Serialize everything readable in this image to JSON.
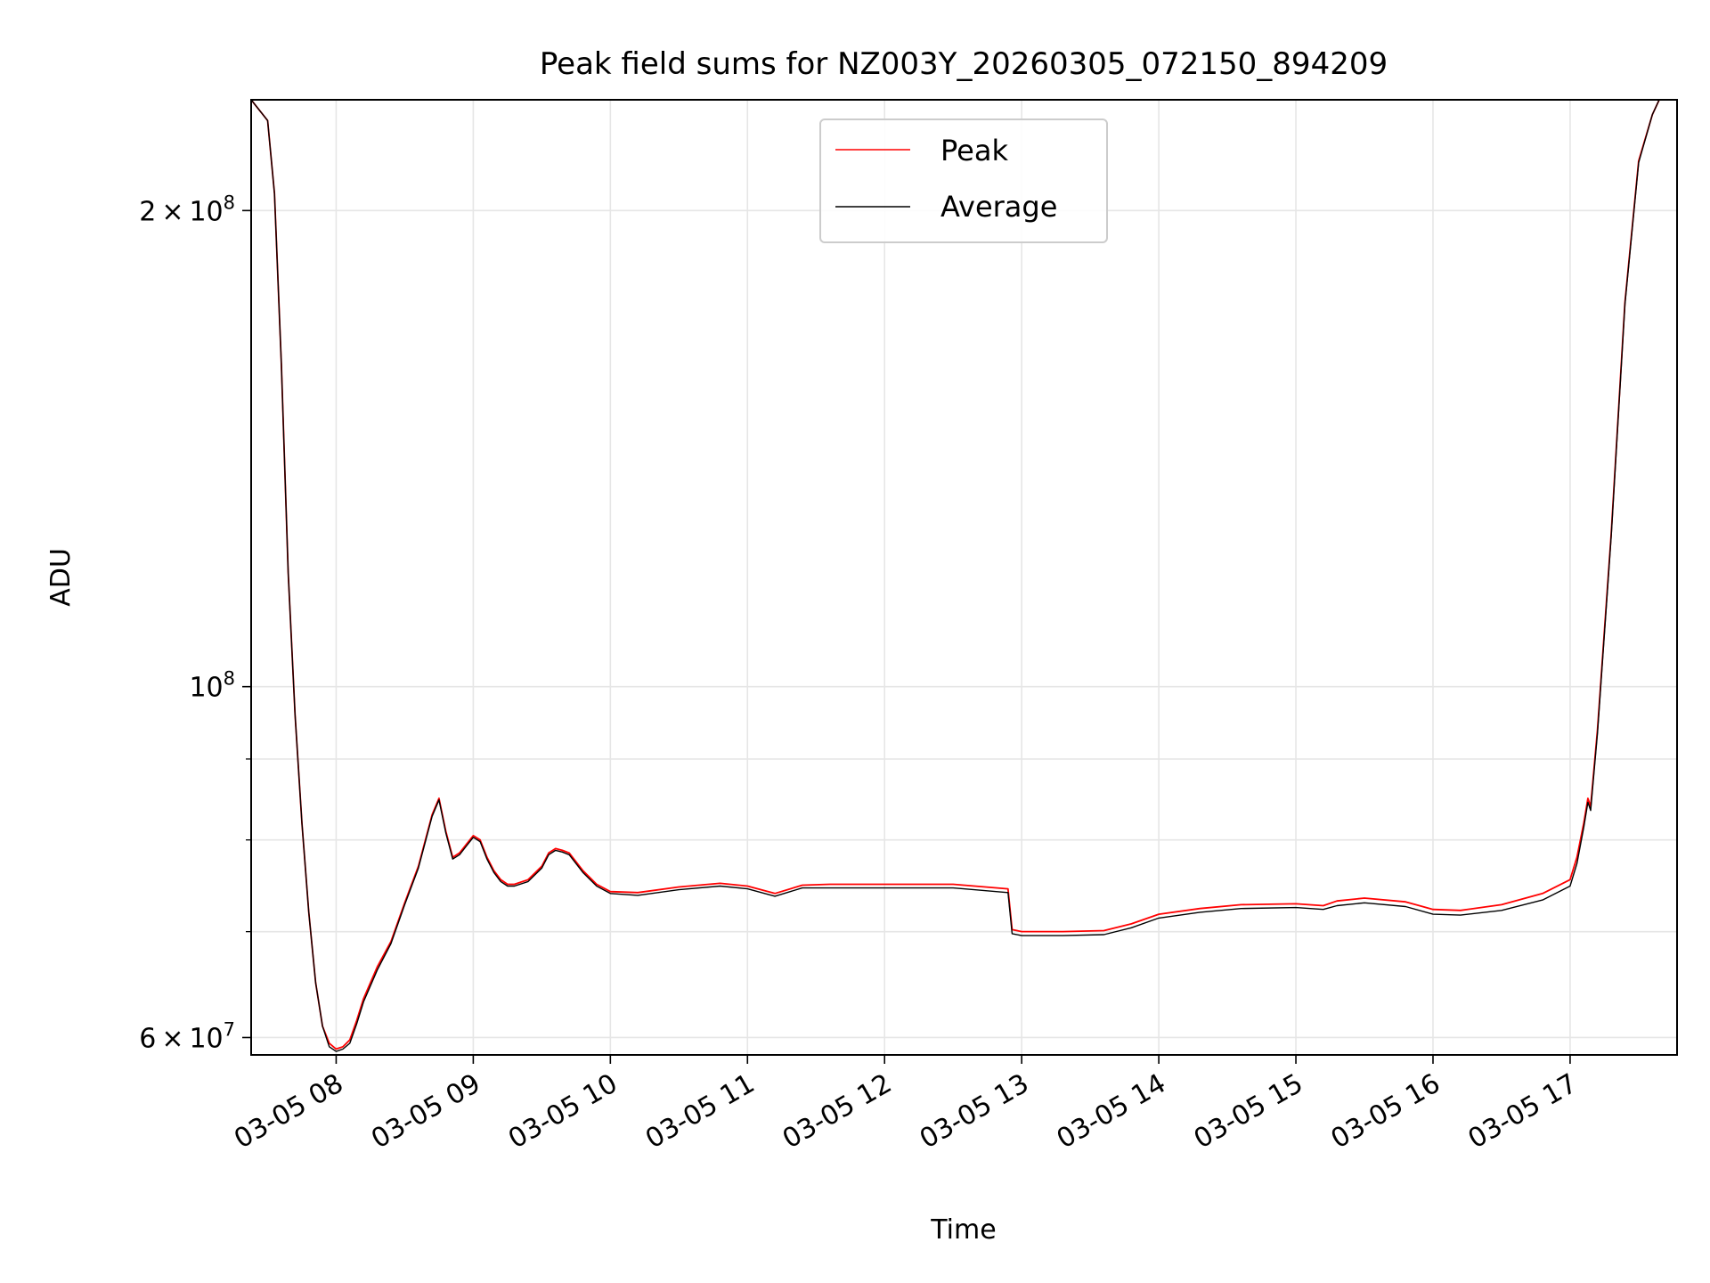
{
  "chart_data": {
    "type": "line",
    "title": "Peak field sums for NZ003Y_20260305_072150_894209",
    "xlabel": "Time",
    "ylabel": "ADU",
    "yscale": "log",
    "xlim": [
      7.38,
      17.78
    ],
    "ylim": [
      58500000,
      235000000
    ],
    "grid": true,
    "legend_position": "upper center",
    "x_ticks": [
      {
        "value": 8,
        "label": "03-05 08"
      },
      {
        "value": 9,
        "label": "03-05 09"
      },
      {
        "value": 10,
        "label": "03-05 10"
      },
      {
        "value": 11,
        "label": "03-05 11"
      },
      {
        "value": 12,
        "label": "03-05 12"
      },
      {
        "value": 13,
        "label": "03-05 13"
      },
      {
        "value": 14,
        "label": "03-05 14"
      },
      {
        "value": 15,
        "label": "03-05 15"
      },
      {
        "value": 16,
        "label": "03-05 16"
      },
      {
        "value": 17,
        "label": "03-05 17"
      }
    ],
    "y_major_ticks": [
      {
        "value": 60000000,
        "mantissa": "6",
        "exponent": "7"
      },
      {
        "value": 100000000,
        "mantissa": "",
        "exponent": "8"
      },
      {
        "value": 200000000,
        "mantissa": "2",
        "exponent": "8"
      }
    ],
    "y_minor_ticks": [
      70000000,
      80000000,
      90000000
    ],
    "series": [
      {
        "name": "Peak",
        "color": "#ff0000",
        "x": [
          7.38,
          7.5,
          7.55,
          7.6,
          7.65,
          7.7,
          7.75,
          7.8,
          7.85,
          7.9,
          7.95,
          8.0,
          8.05,
          8.1,
          8.15,
          8.2,
          8.3,
          8.4,
          8.5,
          8.6,
          8.7,
          8.75,
          8.8,
          8.85,
          8.9,
          8.95,
          9.0,
          9.05,
          9.1,
          9.15,
          9.2,
          9.25,
          9.3,
          9.4,
          9.5,
          9.55,
          9.6,
          9.65,
          9.7,
          9.8,
          9.9,
          10.0,
          10.2,
          10.5,
          10.8,
          11.0,
          11.2,
          11.4,
          11.6,
          12.0,
          12.5,
          12.9,
          12.93,
          13.0,
          13.3,
          13.6,
          13.8,
          14.0,
          14.3,
          14.6,
          15.0,
          15.2,
          15.3,
          15.5,
          15.8,
          16.0,
          16.2,
          16.5,
          16.8,
          17.0,
          17.05,
          17.1,
          17.13,
          17.15,
          17.2,
          17.3,
          17.4,
          17.5,
          17.6,
          17.65,
          17.78
        ],
        "y": [
          235000000,
          228000000,
          205000000,
          160000000,
          118000000,
          96000000,
          82000000,
          72000000,
          65000000,
          61000000,
          59500000,
          59000000,
          59200000,
          59800000,
          61500000,
          63500000,
          66500000,
          69000000,
          73000000,
          77000000,
          83000000,
          85000000,
          81000000,
          78000000,
          78500000,
          79500000,
          80500000,
          80000000,
          78000000,
          76500000,
          75500000,
          75000000,
          75000000,
          75500000,
          77000000,
          78500000,
          79000000,
          78800000,
          78500000,
          76500000,
          75000000,
          74200000,
          74100000,
          74700000,
          75100000,
          74800000,
          74000000,
          74900000,
          75000000,
          75000000,
          75000000,
          74500000,
          70200000,
          70000000,
          70000000,
          70100000,
          70800000,
          71800000,
          72400000,
          72800000,
          72900000,
          72700000,
          73200000,
          73500000,
          73100000,
          72300000,
          72200000,
          72800000,
          74000000,
          75500000,
          78000000,
          82000000,
          85000000,
          84000000,
          94000000,
          125000000,
          175000000,
          215000000,
          230000000,
          235000000,
          235000000
        ]
      },
      {
        "name": "Average",
        "color": "#000000",
        "x": [
          7.38,
          7.5,
          7.55,
          7.6,
          7.65,
          7.7,
          7.75,
          7.8,
          7.85,
          7.9,
          7.95,
          8.0,
          8.05,
          8.1,
          8.15,
          8.2,
          8.3,
          8.4,
          8.5,
          8.6,
          8.7,
          8.75,
          8.8,
          8.85,
          8.9,
          8.95,
          9.0,
          9.05,
          9.1,
          9.15,
          9.2,
          9.25,
          9.3,
          9.4,
          9.5,
          9.55,
          9.6,
          9.65,
          9.7,
          9.8,
          9.9,
          10.0,
          10.2,
          10.5,
          10.8,
          11.0,
          11.2,
          11.4,
          11.6,
          12.0,
          12.5,
          12.9,
          12.93,
          13.0,
          13.3,
          13.6,
          13.8,
          14.0,
          14.3,
          14.6,
          15.0,
          15.2,
          15.3,
          15.5,
          15.8,
          16.0,
          16.2,
          16.5,
          16.8,
          17.0,
          17.05,
          17.1,
          17.13,
          17.15,
          17.2,
          17.3,
          17.4,
          17.5,
          17.6,
          17.65,
          17.78
        ],
        "y": [
          235000000,
          228000000,
          205000000,
          160000000,
          118000000,
          96000000,
          82000000,
          72000000,
          65000000,
          61000000,
          59200000,
          58800000,
          59000000,
          59500000,
          61200000,
          63200000,
          66200000,
          68800000,
          72800000,
          76800000,
          82800000,
          84800000,
          80800000,
          77800000,
          78300000,
          79300000,
          80300000,
          79800000,
          77800000,
          76300000,
          75300000,
          74800000,
          74800000,
          75300000,
          76800000,
          78300000,
          78800000,
          78600000,
          78300000,
          76300000,
          74800000,
          74000000,
          73800000,
          74400000,
          74800000,
          74500000,
          73700000,
          74600000,
          74600000,
          74600000,
          74600000,
          74100000,
          69800000,
          69600000,
          69600000,
          69700000,
          70400000,
          71400000,
          72000000,
          72400000,
          72500000,
          72300000,
          72700000,
          73000000,
          72600000,
          71800000,
          71700000,
          72200000,
          73300000,
          74800000,
          77300000,
          81500000,
          84500000,
          83500000,
          93500000,
          124500000,
          174500000,
          214500000,
          230000000,
          235000000,
          235000000
        ]
      }
    ]
  }
}
